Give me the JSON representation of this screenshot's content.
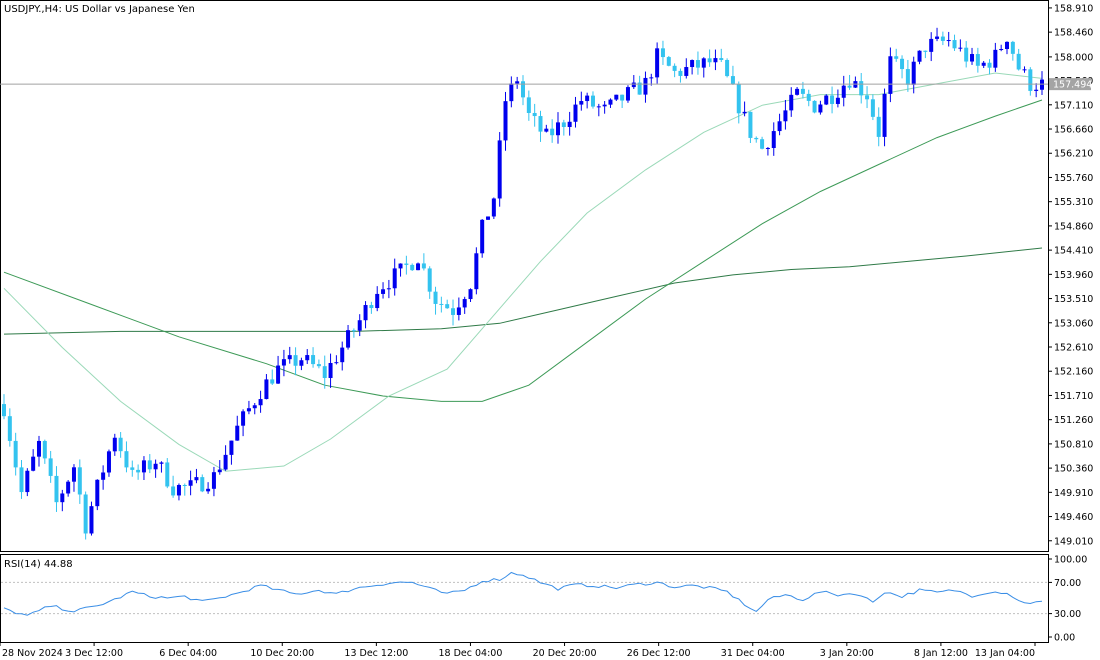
{
  "window": {
    "symbol_title": "USDJPY.,H4:  US Dollar vs Japanese Yen",
    "current_price": "157.494"
  },
  "rsi": {
    "label": "RSI(14) 44.88",
    "levels": [
      "100.00",
      "70.00",
      "30.00",
      "0.00"
    ]
  },
  "colors": {
    "bull": "#0000ee",
    "bear": "#33c3ef",
    "ma_fast": "#9ad9b8",
    "ma_mid": "#3d9a57",
    "ma_slow": "#2f7a47",
    "rsi": "#3a8ee6",
    "grid_level": "#c0c0c0",
    "price_line": "#a0a0a0",
    "price_tag": "#a4a4a4"
  },
  "chart_data": {
    "type": "candlestick",
    "price_axis": {
      "ticks": [
        "158.910",
        "158.460",
        "158.000",
        "157.560",
        "157.110",
        "156.660",
        "156.210",
        "155.760",
        "155.310",
        "154.860",
        "154.410",
        "153.960",
        "153.510",
        "153.060",
        "152.610",
        "152.160",
        "151.710",
        "151.260",
        "150.810",
        "150.360",
        "149.910",
        "149.460",
        "149.010"
      ],
      "ylim": [
        148.82,
        159.02
      ]
    },
    "time_axis": {
      "ticks": [
        "28 Nov 2024",
        "3 Dec 12:00",
        "6 Dec 04:00",
        "10 Dec 20:00",
        "13 Dec 12:00",
        "18 Dec 04:00",
        "20 Dec 20:00",
        "26 Dec 12:00",
        "31 Dec 04:00",
        "3 Jan 20:00",
        "8 Jan 12:00",
        "13 Jan 04:00"
      ]
    },
    "anchors": [
      {
        "i": 0,
        "p": 151.5
      },
      {
        "i": 3,
        "p": 149.9
      },
      {
        "i": 6,
        "p": 150.8
      },
      {
        "i": 9,
        "p": 149.7
      },
      {
        "i": 12,
        "p": 150.4
      },
      {
        "i": 14,
        "p": 149.3
      },
      {
        "i": 16,
        "p": 150.0
      },
      {
        "i": 19,
        "p": 151.0
      },
      {
        "i": 22,
        "p": 150.2
      },
      {
        "i": 26,
        "p": 150.5
      },
      {
        "i": 29,
        "p": 150.0
      },
      {
        "i": 32,
        "p": 150.0
      },
      {
        "i": 36,
        "p": 150.2
      },
      {
        "i": 40,
        "p": 151.1
      },
      {
        "i": 44,
        "p": 151.8
      },
      {
        "i": 47,
        "p": 152.2
      },
      {
        "i": 51,
        "p": 152.4
      },
      {
        "i": 55,
        "p": 152.1
      },
      {
        "i": 58,
        "p": 152.6
      },
      {
        "i": 61,
        "p": 153.1
      },
      {
        "i": 64,
        "p": 153.7
      },
      {
        "i": 68,
        "p": 154.0
      },
      {
        "i": 71,
        "p": 154.3
      },
      {
        "i": 74,
        "p": 153.5
      },
      {
        "i": 77,
        "p": 153.3
      },
      {
        "i": 80,
        "p": 153.8
      },
      {
        "i": 82,
        "p": 154.8
      },
      {
        "i": 84,
        "p": 155.4
      },
      {
        "i": 86,
        "p": 157.2
      },
      {
        "i": 88,
        "p": 157.6
      },
      {
        "i": 90,
        "p": 156.9
      },
      {
        "i": 93,
        "p": 156.5
      },
      {
        "i": 96,
        "p": 156.8
      },
      {
        "i": 99,
        "p": 157.2
      },
      {
        "i": 103,
        "p": 157.0
      },
      {
        "i": 107,
        "p": 157.3
      },
      {
        "i": 110,
        "p": 157.5
      },
      {
        "i": 112,
        "p": 158.0
      },
      {
        "i": 115,
        "p": 157.7
      },
      {
        "i": 118,
        "p": 157.8
      },
      {
        "i": 121,
        "p": 157.9
      },
      {
        "i": 123,
        "p": 157.8
      },
      {
        "i": 126,
        "p": 157.1
      },
      {
        "i": 128,
        "p": 156.6
      },
      {
        "i": 130,
        "p": 156.3
      },
      {
        "i": 133,
        "p": 156.8
      },
      {
        "i": 136,
        "p": 157.3
      },
      {
        "i": 139,
        "p": 157.1
      },
      {
        "i": 142,
        "p": 157.3
      },
      {
        "i": 145,
        "p": 157.6
      },
      {
        "i": 148,
        "p": 157.3
      },
      {
        "i": 150,
        "p": 156.6
      },
      {
        "i": 152,
        "p": 157.9
      },
      {
        "i": 155,
        "p": 157.6
      },
      {
        "i": 158,
        "p": 158.2
      },
      {
        "i": 162,
        "p": 158.3
      },
      {
        "i": 165,
        "p": 158.0
      },
      {
        "i": 167,
        "p": 157.8
      },
      {
        "i": 170,
        "p": 158.0
      },
      {
        "i": 172,
        "p": 158.4
      },
      {
        "i": 174,
        "p": 157.8
      },
      {
        "i": 176,
        "p": 157.5
      },
      {
        "i": 178,
        "p": 157.49
      }
    ],
    "ma_fast": [
      {
        "i": 0,
        "p": 153.7
      },
      {
        "i": 10,
        "p": 152.6
      },
      {
        "i": 20,
        "p": 151.6
      },
      {
        "i": 30,
        "p": 150.8
      },
      {
        "i": 38,
        "p": 150.3
      },
      {
        "i": 48,
        "p": 150.4
      },
      {
        "i": 56,
        "p": 150.9
      },
      {
        "i": 66,
        "p": 151.7
      },
      {
        "i": 76,
        "p": 152.2
      },
      {
        "i": 84,
        "p": 153.2
      },
      {
        "i": 92,
        "p": 154.2
      },
      {
        "i": 100,
        "p": 155.1
      },
      {
        "i": 110,
        "p": 155.9
      },
      {
        "i": 120,
        "p": 156.6
      },
      {
        "i": 130,
        "p": 157.1
      },
      {
        "i": 140,
        "p": 157.3
      },
      {
        "i": 150,
        "p": 157.3
      },
      {
        "i": 160,
        "p": 157.5
      },
      {
        "i": 170,
        "p": 157.7
      },
      {
        "i": 178,
        "p": 157.6
      }
    ],
    "ma_mid": [
      {
        "i": 0,
        "p": 154.0
      },
      {
        "i": 15,
        "p": 153.4
      },
      {
        "i": 30,
        "p": 152.8
      },
      {
        "i": 45,
        "p": 152.3
      },
      {
        "i": 55,
        "p": 151.9
      },
      {
        "i": 65,
        "p": 151.7
      },
      {
        "i": 75,
        "p": 151.6
      },
      {
        "i": 82,
        "p": 151.6
      },
      {
        "i": 90,
        "p": 151.9
      },
      {
        "i": 100,
        "p": 152.7
      },
      {
        "i": 110,
        "p": 153.5
      },
      {
        "i": 120,
        "p": 154.2
      },
      {
        "i": 130,
        "p": 154.9
      },
      {
        "i": 140,
        "p": 155.5
      },
      {
        "i": 150,
        "p": 156.0
      },
      {
        "i": 160,
        "p": 156.5
      },
      {
        "i": 170,
        "p": 156.9
      },
      {
        "i": 178,
        "p": 157.2
      }
    ],
    "ma_slow": [
      {
        "i": 0,
        "p": 152.85
      },
      {
        "i": 20,
        "p": 152.9
      },
      {
        "i": 40,
        "p": 152.9
      },
      {
        "i": 60,
        "p": 152.9
      },
      {
        "i": 75,
        "p": 152.95
      },
      {
        "i": 85,
        "p": 153.05
      },
      {
        "i": 95,
        "p": 153.3
      },
      {
        "i": 105,
        "p": 153.55
      },
      {
        "i": 115,
        "p": 153.8
      },
      {
        "i": 125,
        "p": 153.95
      },
      {
        "i": 135,
        "p": 154.05
      },
      {
        "i": 145,
        "p": 154.1
      },
      {
        "i": 155,
        "p": 154.2
      },
      {
        "i": 165,
        "p": 154.3
      },
      {
        "i": 178,
        "p": 154.45
      }
    ],
    "rsi_series": [
      {
        "i": 0,
        "p": 36
      },
      {
        "i": 4,
        "p": 27
      },
      {
        "i": 8,
        "p": 40
      },
      {
        "i": 12,
        "p": 33
      },
      {
        "i": 16,
        "p": 40
      },
      {
        "i": 19,
        "p": 48
      },
      {
        "i": 22,
        "p": 58
      },
      {
        "i": 25,
        "p": 52
      },
      {
        "i": 28,
        "p": 50
      },
      {
        "i": 31,
        "p": 52
      },
      {
        "i": 34,
        "p": 45
      },
      {
        "i": 37,
        "p": 50
      },
      {
        "i": 40,
        "p": 56
      },
      {
        "i": 44,
        "p": 66
      },
      {
        "i": 47,
        "p": 60
      },
      {
        "i": 50,
        "p": 55
      },
      {
        "i": 54,
        "p": 60
      },
      {
        "i": 57,
        "p": 55
      },
      {
        "i": 60,
        "p": 62
      },
      {
        "i": 64,
        "p": 67
      },
      {
        "i": 67,
        "p": 70
      },
      {
        "i": 70,
        "p": 70
      },
      {
        "i": 73,
        "p": 62
      },
      {
        "i": 76,
        "p": 55
      },
      {
        "i": 79,
        "p": 60
      },
      {
        "i": 82,
        "p": 72
      },
      {
        "i": 85,
        "p": 74
      },
      {
        "i": 87,
        "p": 82
      },
      {
        "i": 89,
        "p": 80
      },
      {
        "i": 92,
        "p": 70
      },
      {
        "i": 95,
        "p": 62
      },
      {
        "i": 98,
        "p": 67
      },
      {
        "i": 101,
        "p": 66
      },
      {
        "i": 105,
        "p": 63
      },
      {
        "i": 108,
        "p": 67
      },
      {
        "i": 112,
        "p": 70
      },
      {
        "i": 115,
        "p": 64
      },
      {
        "i": 118,
        "p": 66
      },
      {
        "i": 121,
        "p": 63
      },
      {
        "i": 124,
        "p": 58
      },
      {
        "i": 127,
        "p": 42
      },
      {
        "i": 129,
        "p": 32
      },
      {
        "i": 131,
        "p": 48
      },
      {
        "i": 134,
        "p": 54
      },
      {
        "i": 137,
        "p": 48
      },
      {
        "i": 140,
        "p": 58
      },
      {
        "i": 143,
        "p": 54
      },
      {
        "i": 146,
        "p": 56
      },
      {
        "i": 149,
        "p": 45
      },
      {
        "i": 151,
        "p": 58
      },
      {
        "i": 154,
        "p": 52
      },
      {
        "i": 157,
        "p": 60
      },
      {
        "i": 160,
        "p": 57
      },
      {
        "i": 163,
        "p": 60
      },
      {
        "i": 166,
        "p": 53
      },
      {
        "i": 169,
        "p": 58
      },
      {
        "i": 172,
        "p": 57
      },
      {
        "i": 174,
        "p": 46
      },
      {
        "i": 176,
        "p": 44
      },
      {
        "i": 178,
        "p": 44.88
      }
    ]
  }
}
